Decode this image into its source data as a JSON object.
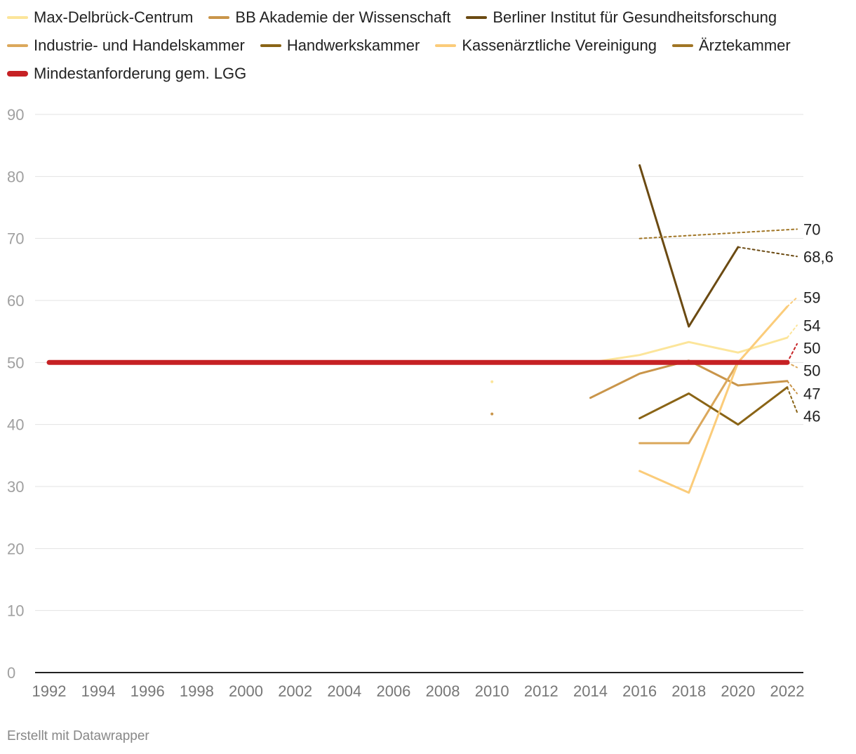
{
  "chart_data": {
    "type": "line",
    "title": "",
    "xlabel": "",
    "ylabel": "",
    "xlim": [
      1992,
      2022
    ],
    "ylim": [
      0,
      90
    ],
    "x_ticks": [
      "1992",
      "1994",
      "1996",
      "1998",
      "2000",
      "2002",
      "2004",
      "2006",
      "2008",
      "2010",
      "2012",
      "2014",
      "2016",
      "2018",
      "2020",
      "2022"
    ],
    "y_ticks": [
      "0",
      "10",
      "20",
      "30",
      "40",
      "50",
      "60",
      "70",
      "80",
      "90"
    ],
    "grid": true,
    "legend_position": "top",
    "series": [
      {
        "name": "Max-Delbrück-Centrum",
        "color": "#fce59a",
        "width": 3,
        "points": [
          [
            2014,
            50
          ],
          [
            2016,
            51.2
          ],
          [
            2018,
            53.3
          ],
          [
            2020,
            51.6
          ],
          [
            2022,
            54
          ]
        ],
        "isolated_points": [
          [
            2010,
            46.9
          ]
        ],
        "projection": [
          [
            2022,
            54
          ],
          [
            2022.4,
            56
          ]
        ],
        "end_label": "54"
      },
      {
        "name": "BB Akademie der Wissenschaft",
        "color": "#c9954a",
        "width": 3,
        "points": [
          [
            2014,
            44.3
          ],
          [
            2016,
            48.2
          ],
          [
            2018,
            50.3
          ],
          [
            2020,
            46.3
          ],
          [
            2022,
            47
          ]
        ],
        "isolated_points": [
          [
            2010,
            41.7
          ]
        ],
        "projection": [
          [
            2022,
            47
          ],
          [
            2022.4,
            45
          ]
        ],
        "end_label": "47"
      },
      {
        "name": "Berliner Institut für Gesundheitsforschung",
        "color": "#6b4a12",
        "width": 3,
        "points": [
          [
            2016,
            81.8
          ],
          [
            2018,
            55.8
          ],
          [
            2020,
            68.6
          ]
        ],
        "isolated_points": [],
        "projection": [
          [
            2020,
            68.6
          ],
          [
            2022.4,
            67.1
          ]
        ],
        "end_label": "68,6"
      },
      {
        "name": "Industrie- und Handelskammer",
        "color": "#dba85c",
        "width": 3,
        "points": [
          [
            2016,
            37
          ],
          [
            2018,
            37
          ],
          [
            2020,
            50
          ],
          [
            2022,
            50
          ]
        ],
        "isolated_points": [],
        "projection": [
          [
            2022,
            50
          ],
          [
            2022.4,
            49.2
          ]
        ],
        "end_label": "50"
      },
      {
        "name": "Handwerkskammer",
        "color": "#8a6416",
        "width": 3,
        "points": [
          [
            2016,
            41
          ],
          [
            2018,
            45
          ],
          [
            2020,
            40
          ],
          [
            2022,
            46
          ]
        ],
        "isolated_points": [],
        "projection": [
          [
            2022,
            46
          ],
          [
            2022.4,
            42
          ]
        ],
        "end_label": "46"
      },
      {
        "name": "Kassenärztliche Vereinigung",
        "color": "#fbcc7a",
        "width": 3,
        "points": [
          [
            2016,
            32.5
          ],
          [
            2018,
            29
          ],
          [
            2020,
            50
          ],
          [
            2022,
            59
          ]
        ],
        "isolated_points": [],
        "projection": [
          [
            2022,
            59
          ],
          [
            2022.4,
            60.5
          ]
        ],
        "end_label": "59"
      },
      {
        "name": "Ärztekammer",
        "color": "#a07525",
        "width": 3,
        "points": [],
        "isolated_points": [],
        "projection": [
          [
            2016,
            70
          ],
          [
            2022.4,
            71.5
          ]
        ],
        "end_label": "70"
      },
      {
        "name": "Mindestanforderung gem. LGG",
        "color": "#c62124",
        "width": 7,
        "points": [
          [
            1992,
            50
          ],
          [
            2022,
            50
          ]
        ],
        "isolated_points": [],
        "projection": [
          [
            2022,
            50
          ],
          [
            2022.4,
            53
          ]
        ],
        "end_label": "50"
      }
    ]
  },
  "footer": {
    "credit": "Erstellt mit Datawrapper"
  }
}
